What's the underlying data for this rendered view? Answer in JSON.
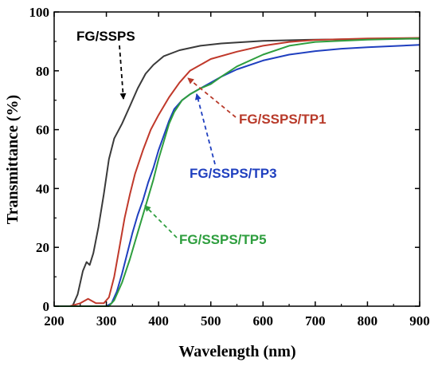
{
  "chart_data": {
    "type": "line",
    "title": "",
    "xlabel": "Wavelength (nm)",
    "ylabel": "Transmittance (%)",
    "xlim": [
      200,
      900
    ],
    "ylim": [
      0,
      100
    ],
    "xticks": [
      200,
      300,
      400,
      500,
      600,
      700,
      800,
      900
    ],
    "yticks": [
      0,
      20,
      40,
      60,
      80,
      100
    ],
    "grid": false,
    "legend": "none (series identified by arrow annotations)",
    "series": [
      {
        "name": "FG/SSPS",
        "color": "#3a3a3a",
        "points": [
          [
            200,
            0
          ],
          [
            235,
            0
          ],
          [
            245,
            4
          ],
          [
            255,
            12
          ],
          [
            262,
            15
          ],
          [
            268,
            14
          ],
          [
            275,
            18
          ],
          [
            285,
            27
          ],
          [
            295,
            38
          ],
          [
            305,
            50
          ],
          [
            315,
            57
          ],
          [
            330,
            62
          ],
          [
            345,
            68
          ],
          [
            360,
            74
          ],
          [
            375,
            79
          ],
          [
            390,
            82
          ],
          [
            410,
            85
          ],
          [
            440,
            87
          ],
          [
            480,
            88.5
          ],
          [
            520,
            89.3
          ],
          [
            600,
            90.2
          ],
          [
            700,
            90.6
          ],
          [
            800,
            90.8
          ],
          [
            900,
            90.9
          ]
        ]
      },
      {
        "name": "FG/SSPS/TP1",
        "color": "#c0392b",
        "points": [
          [
            200,
            0
          ],
          [
            230,
            0
          ],
          [
            250,
            1
          ],
          [
            265,
            2.5
          ],
          [
            280,
            1
          ],
          [
            295,
            1
          ],
          [
            305,
            3
          ],
          [
            315,
            10
          ],
          [
            325,
            20
          ],
          [
            335,
            30
          ],
          [
            345,
            38
          ],
          [
            355,
            45
          ],
          [
            370,
            53
          ],
          [
            385,
            60
          ],
          [
            400,
            65
          ],
          [
            420,
            71
          ],
          [
            440,
            76
          ],
          [
            460,
            80
          ],
          [
            480,
            82
          ],
          [
            500,
            84
          ],
          [
            550,
            86.5
          ],
          [
            600,
            88.5
          ],
          [
            650,
            89.8
          ],
          [
            700,
            90.5
          ],
          [
            800,
            91
          ],
          [
            900,
            91.2
          ]
        ]
      },
      {
        "name": "FG/SSPS/TP3",
        "color": "#1f3fbf",
        "points": [
          [
            200,
            0
          ],
          [
            300,
            0
          ],
          [
            310,
            1
          ],
          [
            320,
            5
          ],
          [
            330,
            11
          ],
          [
            340,
            18
          ],
          [
            350,
            25
          ],
          [
            360,
            31
          ],
          [
            370,
            36
          ],
          [
            380,
            42
          ],
          [
            390,
            47
          ],
          [
            400,
            53
          ],
          [
            410,
            58
          ],
          [
            420,
            63
          ],
          [
            430,
            67
          ],
          [
            445,
            70
          ],
          [
            460,
            72
          ],
          [
            480,
            74
          ],
          [
            500,
            76
          ],
          [
            520,
            78
          ],
          [
            550,
            80.5
          ],
          [
            600,
            83.5
          ],
          [
            650,
            85.5
          ],
          [
            700,
            86.7
          ],
          [
            750,
            87.5
          ],
          [
            800,
            88
          ],
          [
            900,
            88.8
          ]
        ]
      },
      {
        "name": "FG/SSPS/TP5",
        "color": "#2e9e3e",
        "points": [
          [
            200,
            0
          ],
          [
            305,
            0
          ],
          [
            315,
            2
          ],
          [
            330,
            8
          ],
          [
            345,
            16
          ],
          [
            360,
            25
          ],
          [
            375,
            34
          ],
          [
            390,
            43
          ],
          [
            400,
            50
          ],
          [
            410,
            56
          ],
          [
            420,
            62
          ],
          [
            430,
            66
          ],
          [
            445,
            70
          ],
          [
            460,
            72
          ],
          [
            480,
            74
          ],
          [
            500,
            75.5
          ],
          [
            520,
            78
          ],
          [
            550,
            81.5
          ],
          [
            600,
            85.5
          ],
          [
            650,
            88.5
          ],
          [
            700,
            89.8
          ],
          [
            800,
            90.6
          ],
          [
            900,
            91
          ]
        ]
      }
    ],
    "annotations": [
      {
        "text": "FG/SSPS",
        "color": "#000000",
        "target_series": "FG/SSPS"
      },
      {
        "text": "FG/SSPS/TP1",
        "color": "#b83a2a",
        "target_series": "FG/SSPS/TP1"
      },
      {
        "text": "FG/SSPS/TP3",
        "color": "#1f3fbf",
        "target_series": "FG/SSPS/TP3"
      },
      {
        "text": "FG/SSPS/TP5",
        "color": "#2e9e3e",
        "target_series": "FG/SSPS/TP5"
      }
    ]
  }
}
